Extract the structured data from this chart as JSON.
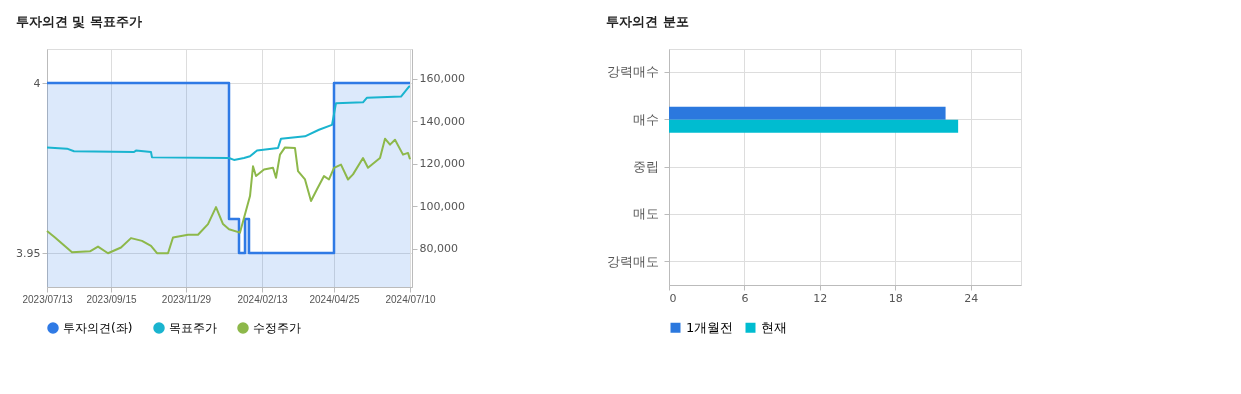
{
  "chart_data": [
    {
      "type": "line",
      "title": "투자의견 및 목표주가",
      "legend": "bottom",
      "grid": true,
      "xlim": [
        "2023-07-13",
        "2024-07-12"
      ],
      "xticks": [
        {
          "value": "2023-07-13",
          "label": "2023/07/13"
        },
        {
          "value": "2023-09-15",
          "label": "2023/09/15"
        },
        {
          "value": "2023-11-29",
          "label": "2023/11/29"
        },
        {
          "value": "2024-02-13",
          "label": "2024/02/13"
        },
        {
          "value": "2024-04-25",
          "label": "2024/04/25"
        },
        {
          "value": "2024-07-10",
          "label": "2024/07/10"
        }
      ],
      "ylim": [
        3.94,
        4.01
      ],
      "yticks": [
        3.95,
        4
      ],
      "y2lim": [
        62000,
        174000
      ],
      "y2ticks": [
        {
          "value": 80000,
          "label": "80,000"
        },
        {
          "value": 100000,
          "label": "100,000"
        },
        {
          "value": 120000,
          "label": "120,000"
        },
        {
          "value": 140000,
          "label": "140,000"
        },
        {
          "value": 160000,
          "label": "160,000"
        }
      ],
      "series": [
        {
          "name": "투자의견(좌)",
          "type": "area",
          "color": "#2f7ae5",
          "x": [
            "2023-07-13",
            "2024-01-11",
            "2024-01-11",
            "2024-01-21",
            "2024-01-21",
            "2024-01-27",
            "2024-01-27",
            "2024-01-31",
            "2024-01-31",
            "2024-04-25",
            "2024-04-25",
            "2024-07-10"
          ],
          "values": [
            4,
            4,
            3.96,
            3.96,
            3.95,
            3.95,
            3.96,
            3.96,
            3.95,
            3.95,
            4,
            4
          ]
        },
        {
          "name": "목표주가",
          "type": "line",
          "axis": "y2",
          "color": "#1ab4cf",
          "x": [
            "2023-07-13",
            "2023-08-02",
            "2023-08-09",
            "2023-10-08",
            "2023-10-10",
            "2023-10-25",
            "2023-10-26",
            "2024-01-11",
            "2024-01-16",
            "2024-01-26",
            "2024-02-01",
            "2024-02-08",
            "2024-02-29",
            "2024-03-03",
            "2024-03-27",
            "2024-04-10",
            "2024-04-23",
            "2024-04-27",
            "2024-05-24",
            "2024-05-28",
            "2024-07-01",
            "2024-07-09",
            "2024-07-10"
          ],
          "values": [
            127700,
            127100,
            125900,
            125500,
            126200,
            125500,
            123000,
            122700,
            121800,
            122700,
            123500,
            126200,
            127400,
            131800,
            132900,
            136000,
            138300,
            148500,
            148900,
            151100,
            151600,
            156300,
            156300
          ]
        },
        {
          "name": "수정주가",
          "type": "line",
          "axis": "y2",
          "color": "#8db84a",
          "x": [
            "2023-07-13",
            "2023-07-21",
            "2023-08-07",
            "2023-08-25",
            "2023-09-02",
            "2023-09-12",
            "2023-09-25",
            "2023-10-05",
            "2023-10-16",
            "2023-10-25",
            "2023-10-31",
            "2023-11-11",
            "2023-11-16",
            "2023-12-01",
            "2023-12-11",
            "2023-12-21",
            "2023-12-29",
            "2024-01-05",
            "2024-01-11",
            "2024-01-22",
            "2024-01-27",
            "2024-02-01",
            "2024-02-04",
            "2024-02-07",
            "2024-02-15",
            "2024-02-24",
            "2024-02-27",
            "2024-03-02",
            "2024-03-07",
            "2024-03-17",
            "2024-03-20",
            "2024-03-27",
            "2024-04-02",
            "2024-04-08",
            "2024-04-15",
            "2024-04-20",
            "2024-04-25",
            "2024-05-02",
            "2024-05-09",
            "2024-05-14",
            "2024-05-24",
            "2024-05-29",
            "2024-06-10",
            "2024-06-15",
            "2024-06-20",
            "2024-06-25",
            "2024-07-03",
            "2024-07-08",
            "2024-07-10"
          ],
          "values": [
            88400,
            85300,
            78300,
            78800,
            81000,
            77900,
            80600,
            85000,
            83700,
            81400,
            77900,
            77900,
            85300,
            86600,
            86600,
            91600,
            99600,
            91600,
            89200,
            87600,
            96200,
            104800,
            118800,
            114200,
            117300,
            118100,
            113400,
            124300,
            127700,
            127400,
            116500,
            112600,
            102500,
            108000,
            114200,
            112600,
            118100,
            119600,
            112600,
            115000,
            122700,
            118100,
            122700,
            131800,
            129000,
            131300,
            124300,
            125100,
            122100
          ]
        }
      ]
    },
    {
      "type": "bar",
      "title": "투자의견 분포",
      "orientation": "horizontal",
      "legend": "bottom",
      "grid": true,
      "categories": [
        "강력매수",
        "매수",
        "중립",
        "매도",
        "강력매도"
      ],
      "xlim": [
        0,
        28
      ],
      "xticks": [
        0,
        6,
        12,
        18,
        24
      ],
      "series": [
        {
          "name": "1개월전",
          "color": "#2b78de",
          "values": [
            0,
            22,
            0,
            0,
            0
          ]
        },
        {
          "name": "현재",
          "color": "#00bcd0",
          "values": [
            0,
            23,
            0,
            0,
            0
          ]
        }
      ]
    }
  ]
}
